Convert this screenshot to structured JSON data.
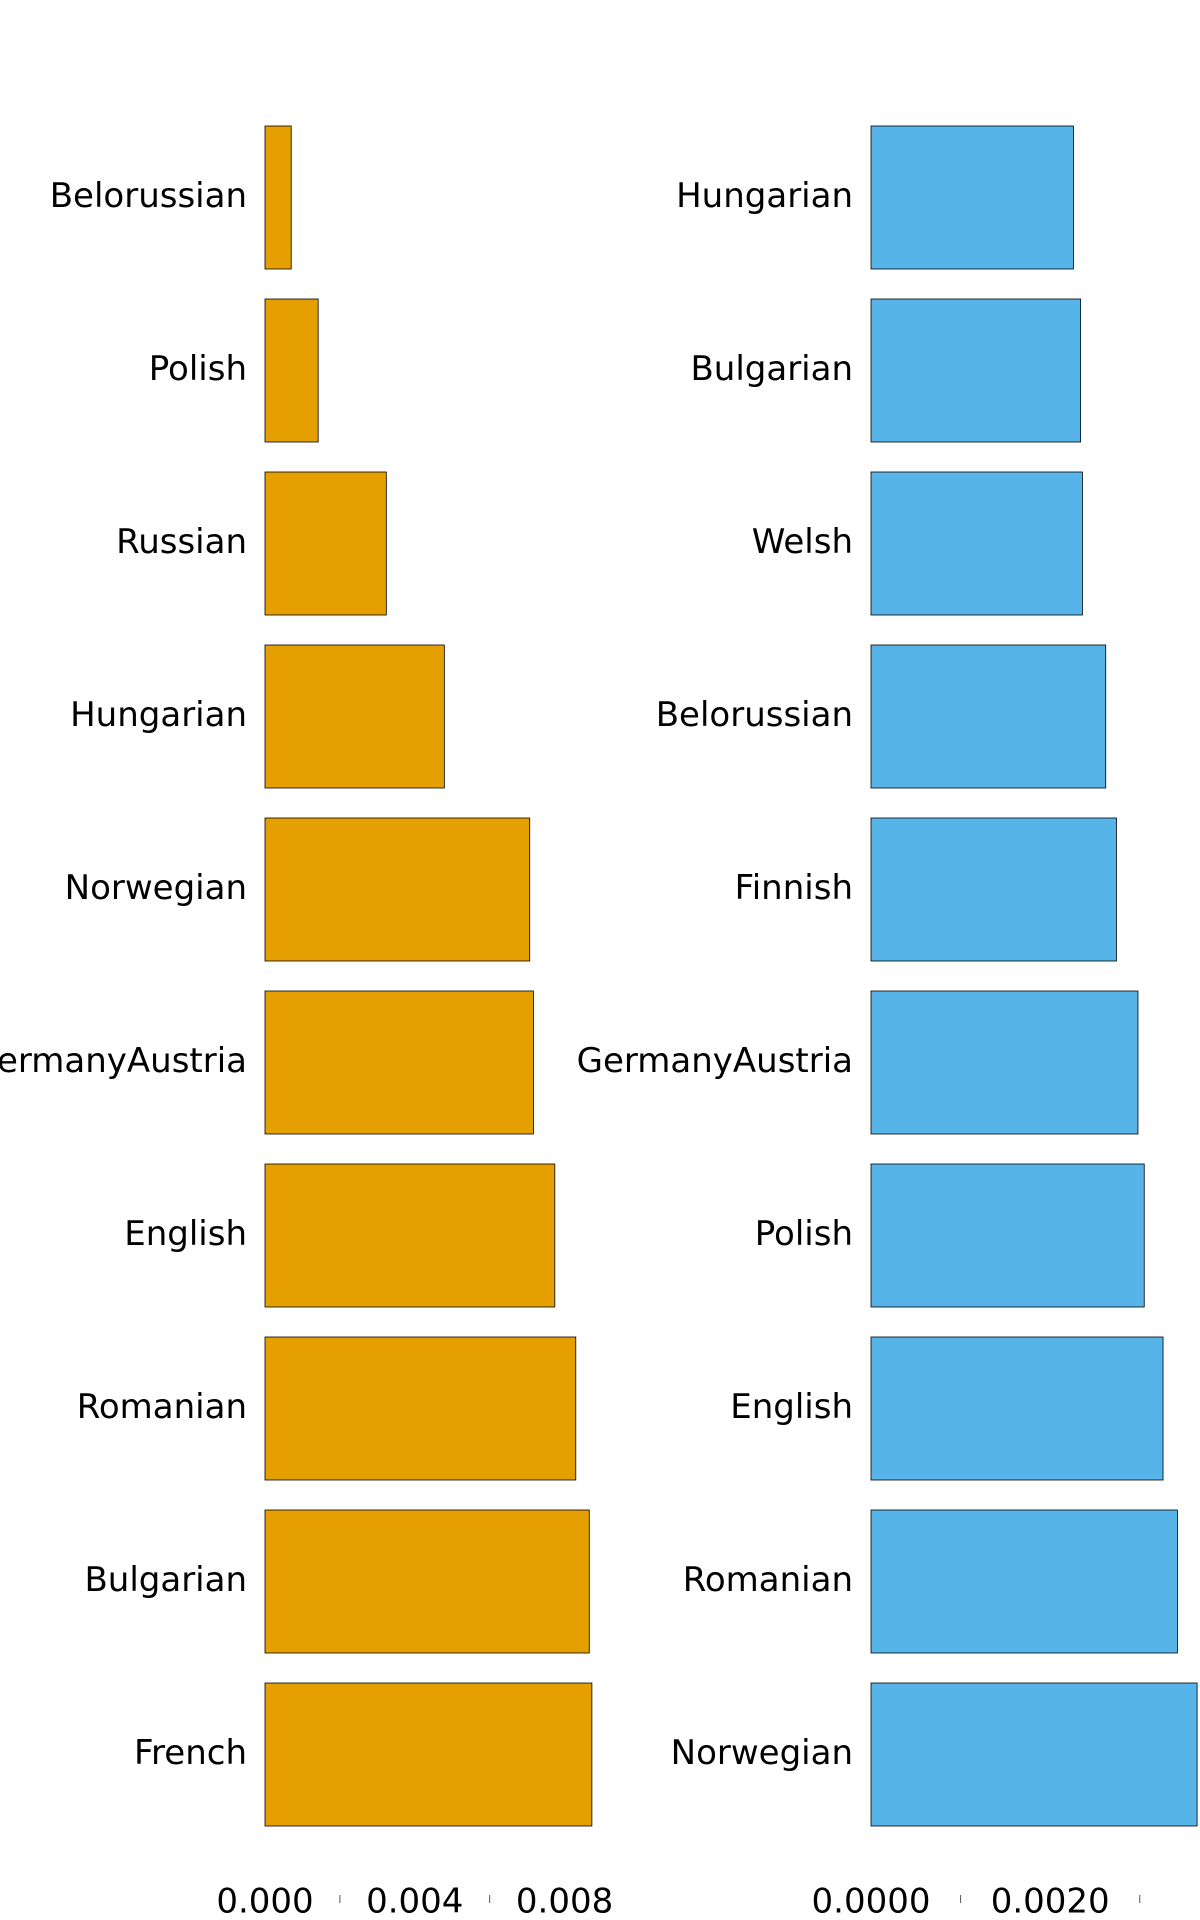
{
  "chart_data": [
    {
      "type": "bar",
      "orientation": "horizontal",
      "color": "#E69F00",
      "categories": [
        "Belorussian",
        "Polish",
        "Russian",
        "Hungarian",
        "Norwegian",
        "GermanyAustria",
        "English",
        "Romanian",
        "Bulgarian",
        "French"
      ],
      "values": [
        0.0007,
        0.00142,
        0.00324,
        0.00479,
        0.00707,
        0.00717,
        0.00774,
        0.0083,
        0.00866,
        0.00873
      ],
      "xlim": [
        0,
        0.009
      ],
      "xticks": [
        {
          "value": 0,
          "label": "0.000"
        },
        0.004,
        0.008
      ],
      "minor_xticks": [
        0.002,
        0.006
      ]
    },
    {
      "type": "bar",
      "orientation": "horizontal",
      "color": "#56B4E9",
      "categories": [
        "Hungarian",
        "Bulgarian",
        "Welsh",
        "Belorussian",
        "Finnish",
        "GermanyAustria",
        "Polish",
        "English",
        "Romanian",
        "Norwegian"
      ],
      "values": [
        0.00226,
        0.00234,
        0.00236,
        0.00262,
        0.00274,
        0.00298,
        0.00305,
        0.00326,
        0.00342,
        0.00364
      ],
      "xlim": [
        0,
        0.00365
      ],
      "xticks": [
        {
          "value": 0,
          "label": "0.0000"
        },
        {
          "value": 0.002,
          "label": "0.0020"
        }
      ],
      "minor_xticks": [
        0.001,
        0.003
      ]
    }
  ]
}
